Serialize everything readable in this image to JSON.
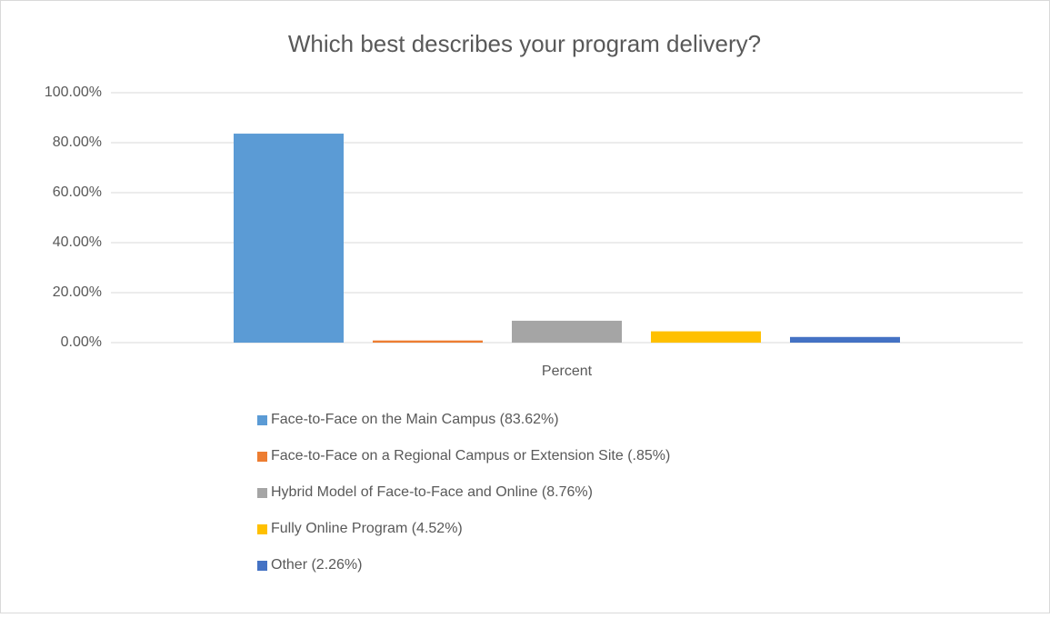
{
  "chart_data": {
    "type": "bar",
    "title": "Which best describes your program delivery?",
    "categories": [
      "Percent"
    ],
    "series": [
      {
        "name": "Face-to-Face on the Main Campus (83.62%)",
        "color": "#5b9bd5",
        "values": [
          83.62
        ]
      },
      {
        "name": "Face-to-Face on a Regional Campus or Extension Site (.85%)",
        "color": "#ed7d31",
        "values": [
          0.85
        ]
      },
      {
        "name": "Hybrid Model of Face-to-Face and Online (8.76%)",
        "color": "#a5a5a5",
        "values": [
          8.76
        ]
      },
      {
        "name": "Fully Online Program (4.52%)",
        "color": "#ffc000",
        "values": [
          4.52
        ]
      },
      {
        "name": "Other (2.26%)",
        "color": "#4472c4",
        "values": [
          2.26
        ]
      }
    ],
    "ylim": [
      0,
      100
    ],
    "yticks": [
      {
        "value": 0,
        "label": "0.00%"
      },
      {
        "value": 20,
        "label": "20.00%"
      },
      {
        "value": 40,
        "label": "40.00%"
      },
      {
        "value": 60,
        "label": "60.00%"
      },
      {
        "value": 80,
        "label": "80.00%"
      },
      {
        "value": 100,
        "label": "100.00%"
      }
    ],
    "grid": true,
    "legend": "bottom"
  }
}
